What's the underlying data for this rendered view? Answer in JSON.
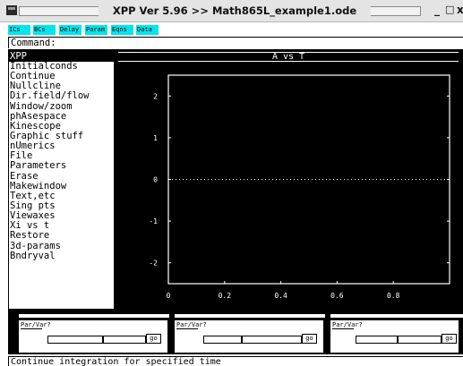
{
  "window": {
    "title": "XPP Ver 5.96 >> Math865L_example1.ode",
    "controls": {
      "minimize": "_",
      "maximize": "□",
      "close": "x"
    }
  },
  "buttons": [
    {
      "label": "ICs"
    },
    {
      "label": "BCs"
    },
    {
      "label": "Delay"
    },
    {
      "label": "Param"
    },
    {
      "label": "Eqns"
    },
    {
      "label": "Data"
    }
  ],
  "command": {
    "label": "Command:"
  },
  "menu": {
    "title": "XPP",
    "items": [
      "Initialconds",
      "Continue",
      "Nullcline",
      "Dir.field/flow",
      "Window/zoom",
      "phAsespace",
      "Kinescope",
      "Graphic stuff",
      "nUmerics",
      "File",
      "Parameters",
      "Erase",
      "Makewindow",
      "Text,etc",
      "Sing pts",
      "Viewaxes",
      "Xi vs t",
      "Restore",
      "3d-params",
      "Bndryval"
    ]
  },
  "graph": {
    "title": "A vs T"
  },
  "chart_data": {
    "type": "line",
    "title": "A vs T",
    "xlabel": "",
    "ylabel": "",
    "x_ticks": [
      "0",
      "0.2",
      "0.4",
      "0.6",
      "0.8"
    ],
    "y_ticks": [
      "2",
      "1",
      "0",
      "-1",
      "-2"
    ],
    "xlim": [
      0,
      1
    ],
    "ylim": [
      -2.5,
      2.5
    ],
    "grid": false,
    "series": [
      {
        "x": [
          0,
          1
        ],
        "y": [
          0,
          0
        ],
        "style": "dotted",
        "color": "#ffffff"
      }
    ]
  },
  "sliders": [
    {
      "label": "Par/Var?",
      "go": "go"
    },
    {
      "label": "Par/Var?",
      "go": "go"
    },
    {
      "label": "Par/Var?",
      "go": "go"
    }
  ],
  "status": {
    "text": "Continue integration for specified time"
  },
  "colors": {
    "button_bg": "#00e5ee",
    "plot_bg": "#000000",
    "plot_fg": "#ffffff"
  }
}
